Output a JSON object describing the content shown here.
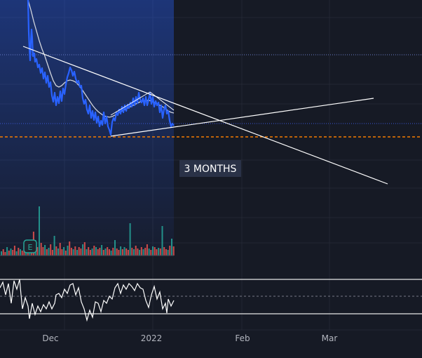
{
  "colors": {
    "background": "#161a25",
    "grid": "#232734",
    "price_line": "#2962ff",
    "moving_average": "#d1d4dc",
    "trendline": "#ffffff",
    "support_level": "#f57c00",
    "volume_up": "#26a69a",
    "volume_down": "#ef5350",
    "oscillator": "#ffffff",
    "annotation_bg": "#2a3247"
  },
  "annotation": {
    "label": "3 MONTHS"
  },
  "earnings_marker": {
    "label": "E",
    "icon": "earnings-icon"
  },
  "x_axis": {
    "labels": [
      "Dec",
      "2022",
      "Feb",
      "Mar"
    ]
  },
  "chart_data": {
    "type": "line",
    "title": "",
    "xlabel": "",
    "ylabel": "",
    "x_ticks": [
      "Dec",
      "2022",
      "Feb",
      "Mar"
    ],
    "grid": true,
    "legend": "none",
    "series": [
      {
        "role": "price",
        "color": "#2962ff"
      },
      {
        "role": "moving-average",
        "color": "#d1d4dc"
      }
    ],
    "panes": [
      "price",
      "volume",
      "oscillator"
    ]
  }
}
